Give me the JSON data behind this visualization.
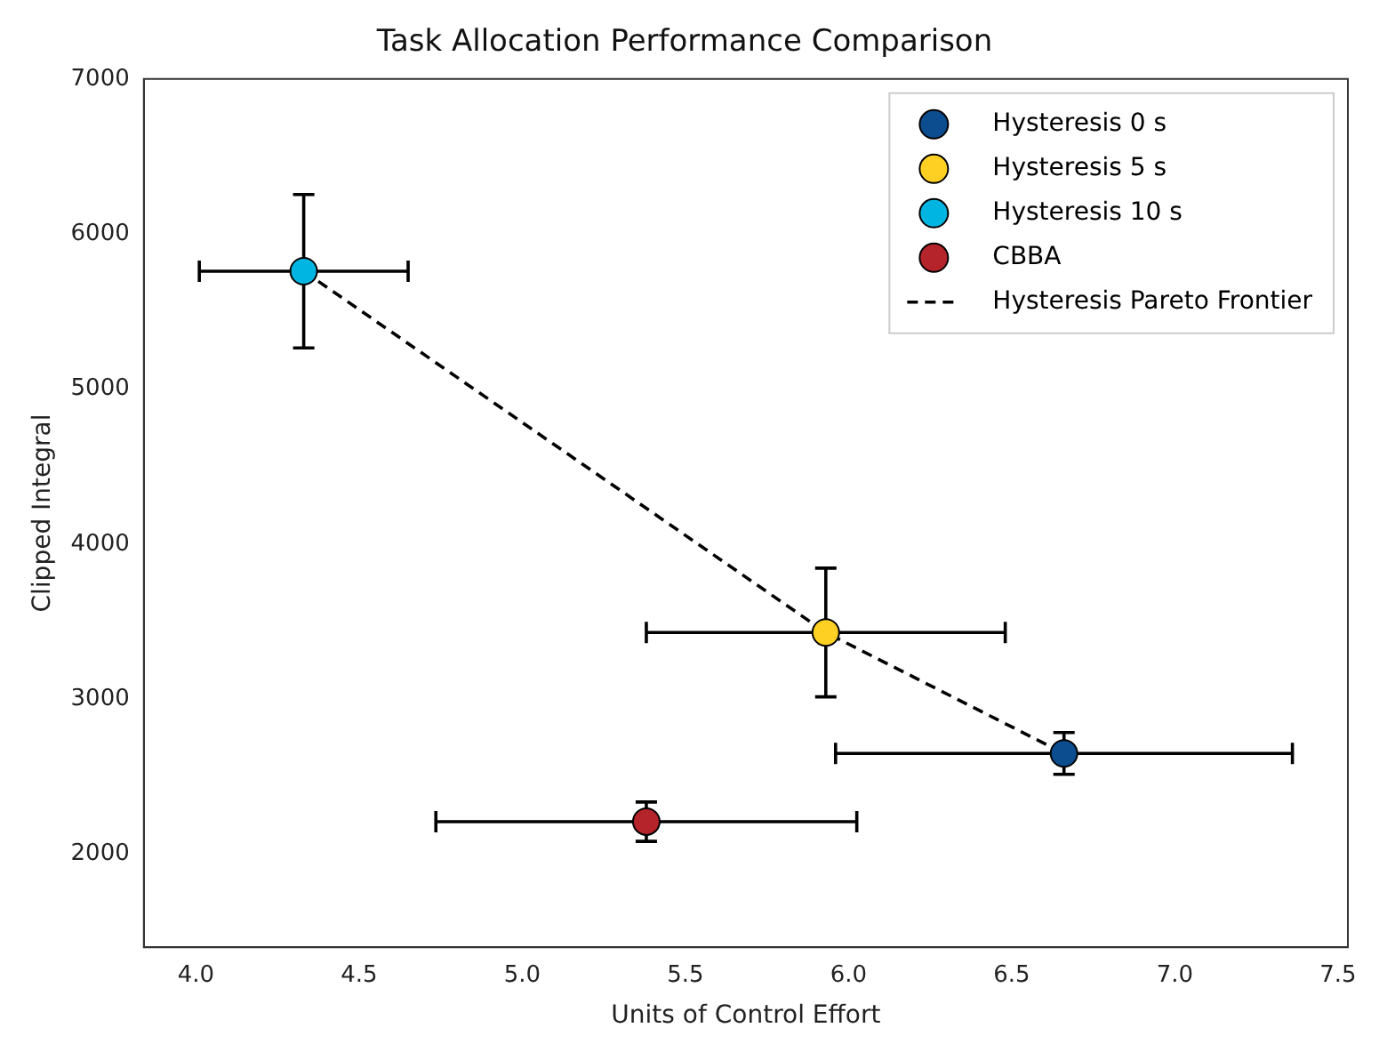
{
  "chart_data": {
    "type": "scatter",
    "title": "Task Allocation Performance Comparison",
    "xlabel": "Units of Control Effort",
    "ylabel": "Clipped Integral",
    "xlim": [
      3.84,
      7.53
    ],
    "xticks": [
      {
        "value": 4,
        "label": "4.0"
      },
      {
        "value": 4.5,
        "label": "4.5"
      },
      {
        "value": 5,
        "label": "5.0"
      },
      {
        "value": 5.5,
        "label": "5.5"
      },
      {
        "value": 6,
        "label": "6.0"
      },
      {
        "value": 6.5,
        "label": "6.5"
      },
      {
        "value": 7,
        "label": "7.0"
      },
      {
        "value": 7.5,
        "label": "7.5"
      }
    ],
    "ylim": [
      1400,
      7000
    ],
    "yticks": [
      2000,
      3000,
      4000,
      5000,
      6000,
      7000
    ],
    "grid": false,
    "legend": "top right",
    "marker": "circle",
    "series": [
      {
        "name": "Hysteresis 0 s",
        "color": "#0b4d8f",
        "x": [
          6.66
        ],
        "values": [
          2650
        ],
        "xerrors": [
          0.7
        ],
        "errors": [
          135
        ]
      },
      {
        "name": "Hysteresis 5 s",
        "color": "#fdd023",
        "x": [
          5.93
        ],
        "values": [
          3430
        ],
        "xerrors": [
          0.55
        ],
        "errors": [
          415
        ]
      },
      {
        "name": "Hysteresis 10 s",
        "color": "#00b5e2",
        "x": [
          4.33
        ],
        "values": [
          5760
        ],
        "xerrors": [
          0.32
        ],
        "errors": [
          495
        ]
      },
      {
        "name": "CBBA",
        "color": "#b5232b",
        "x": [
          5.38
        ],
        "values": [
          2210
        ],
        "xerrors": [
          0.645
        ],
        "errors": [
          127
        ]
      },
      {
        "name": "Hysteresis Pareto Frontier",
        "type": "line",
        "color": "#000000",
        "line_style": "dashed",
        "marker": "none",
        "x": [
          4.33,
          5.93,
          6.66
        ],
        "values": [
          5760,
          3430,
          2650
        ]
      }
    ]
  }
}
